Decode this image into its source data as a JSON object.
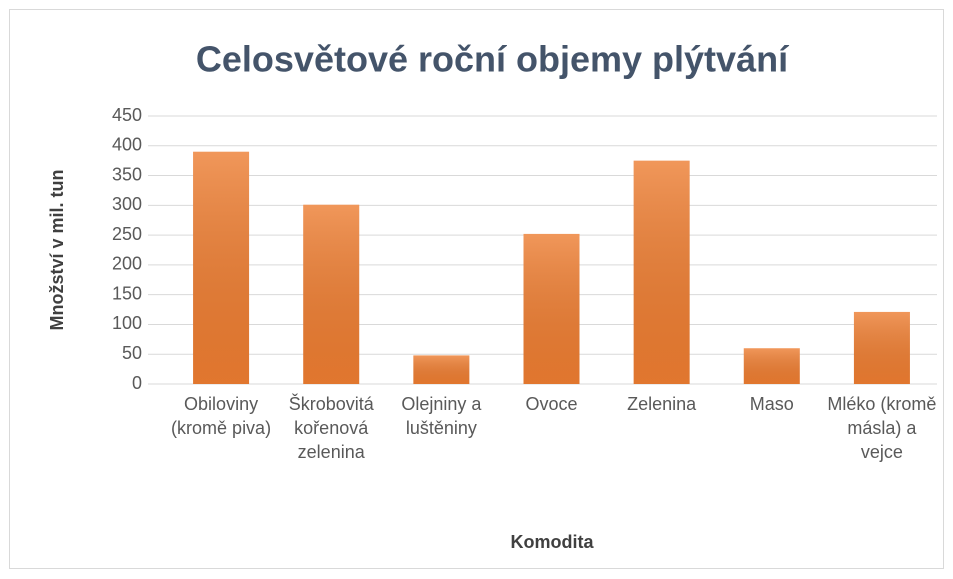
{
  "chart_data": {
    "type": "bar",
    "title": "Celosvětové roční objemy plýtvání",
    "x_label": "Komodita",
    "y_label": "Množství v mil. tun",
    "categories": [
      "Obiloviny (kromě piva)",
      "Škrobovitá kořenová zelenina",
      "Olejniny a luštěniny",
      "Ovoce",
      "Zelenina",
      "Maso",
      "Mléko (kromě másla) a vejce"
    ],
    "values": [
      390,
      301,
      48,
      252,
      375,
      60,
      121
    ],
    "color": "#ed7d31",
    "ylim": [
      0,
      450
    ],
    "yticks": [
      0,
      50,
      100,
      150,
      200,
      250,
      300,
      350,
      400,
      450
    ],
    "grid": true
  }
}
